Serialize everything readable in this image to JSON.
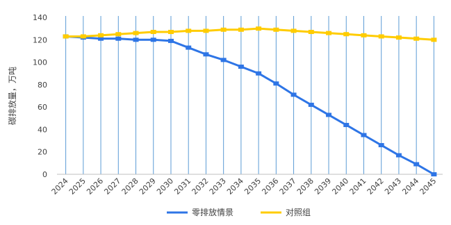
{
  "chart_data": {
    "type": "line",
    "title": "",
    "xlabel": "",
    "ylabel": "碳排放量，万吨",
    "ylim": [
      0,
      140
    ],
    "yticks": [
      0,
      20,
      40,
      60,
      80,
      100,
      120,
      140
    ],
    "grid": "vertical",
    "legend_position": "bottom",
    "categories": [
      "2024",
      "2025",
      "2026",
      "2027",
      "2028",
      "2029",
      "2030",
      "2031",
      "2032",
      "2033",
      "2034",
      "2035",
      "2036",
      "2037",
      "2038",
      "2039",
      "2040",
      "2041",
      "2042",
      "2043",
      "2044",
      "2045"
    ],
    "series": [
      {
        "name": "零排放情景",
        "color": "#2E75E6",
        "values": [
          123,
          122,
          121,
          121,
          120,
          120,
          119,
          113,
          107,
          102,
          96,
          90,
          81,
          71,
          62,
          53,
          44,
          35,
          26,
          17,
          9,
          0
        ]
      },
      {
        "name": "对照组",
        "color": "#FFCC00",
        "values": [
          123,
          123,
          124,
          125,
          126,
          127,
          127,
          128,
          128,
          129,
          129,
          130,
          129,
          128,
          127,
          126,
          125,
          124,
          123,
          122,
          121,
          120
        ]
      }
    ]
  }
}
